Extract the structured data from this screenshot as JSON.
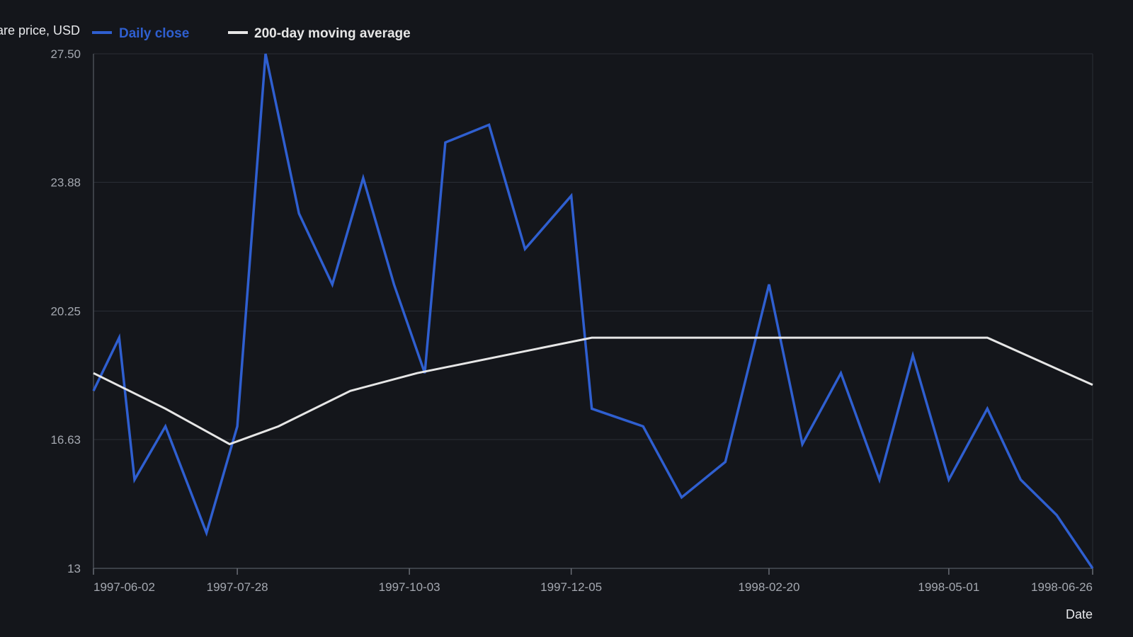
{
  "chart_data": {
    "type": "line",
    "xlabel": "Date",
    "ylabel": "Share price, USD",
    "ylim": [
      13,
      27.5
    ],
    "xlim": [
      "1997-06-02",
      "1998-06-26"
    ],
    "y_ticks": [
      "13",
      "16.63",
      "20.25",
      "23.88",
      "27.50"
    ],
    "x_ticks": [
      "1997-06-02",
      "1997-07-28",
      "1997-10-03",
      "1997-12-05",
      "1998-02-20",
      "1998-05-01",
      "1998-06-26"
    ],
    "grid": true,
    "legend_position": "top-left",
    "series": [
      {
        "name": "Daily close",
        "color": "#2f5fd0",
        "points": [
          {
            "x": "1997-06-02",
            "y": 18.0
          },
          {
            "x": "1997-06-12",
            "y": 19.5
          },
          {
            "x": "1997-06-18",
            "y": 15.5
          },
          {
            "x": "1997-06-30",
            "y": 17.0
          },
          {
            "x": "1997-07-16",
            "y": 14.0
          },
          {
            "x": "1997-07-28",
            "y": 17.0
          },
          {
            "x": "1997-08-08",
            "y": 27.5
          },
          {
            "x": "1997-08-21",
            "y": 23.0
          },
          {
            "x": "1997-09-03",
            "y": 21.0
          },
          {
            "x": "1997-09-15",
            "y": 24.0
          },
          {
            "x": "1997-09-27",
            "y": 21.0
          },
          {
            "x": "1997-10-09",
            "y": 18.5
          },
          {
            "x": "1997-10-17",
            "y": 25.0
          },
          {
            "x": "1997-11-03",
            "y": 25.5
          },
          {
            "x": "1997-11-17",
            "y": 22.0
          },
          {
            "x": "1997-12-05",
            "y": 23.5
          },
          {
            "x": "1997-12-13",
            "y": 17.5
          },
          {
            "x": "1998-01-02",
            "y": 17.0
          },
          {
            "x": "1998-01-17",
            "y": 15.0
          },
          {
            "x": "1998-02-03",
            "y": 16.0
          },
          {
            "x": "1998-02-20",
            "y": 21.0
          },
          {
            "x": "1998-03-05",
            "y": 16.5
          },
          {
            "x": "1998-03-20",
            "y": 18.5
          },
          {
            "x": "1998-04-04",
            "y": 15.5
          },
          {
            "x": "1998-04-17",
            "y": 19.0
          },
          {
            "x": "1998-05-01",
            "y": 15.5
          },
          {
            "x": "1998-05-16",
            "y": 17.5
          },
          {
            "x": "1998-05-29",
            "y": 15.5
          },
          {
            "x": "1998-06-12",
            "y": 14.5
          },
          {
            "x": "1998-06-26",
            "y": 13.0
          }
        ]
      },
      {
        "name": "200-day moving average",
        "color": "#e6e6e6",
        "points": [
          {
            "x": "1997-06-02",
            "y": 18.5
          },
          {
            "x": "1997-06-30",
            "y": 17.5
          },
          {
            "x": "1997-07-25",
            "y": 16.5
          },
          {
            "x": "1997-08-13",
            "y": 17.0
          },
          {
            "x": "1997-09-10",
            "y": 18.0
          },
          {
            "x": "1997-10-06",
            "y": 18.5
          },
          {
            "x": "1997-12-13",
            "y": 19.5
          },
          {
            "x": "1998-05-16",
            "y": 19.5
          },
          {
            "x": "1998-06-26",
            "y": 18.17
          }
        ]
      }
    ]
  }
}
